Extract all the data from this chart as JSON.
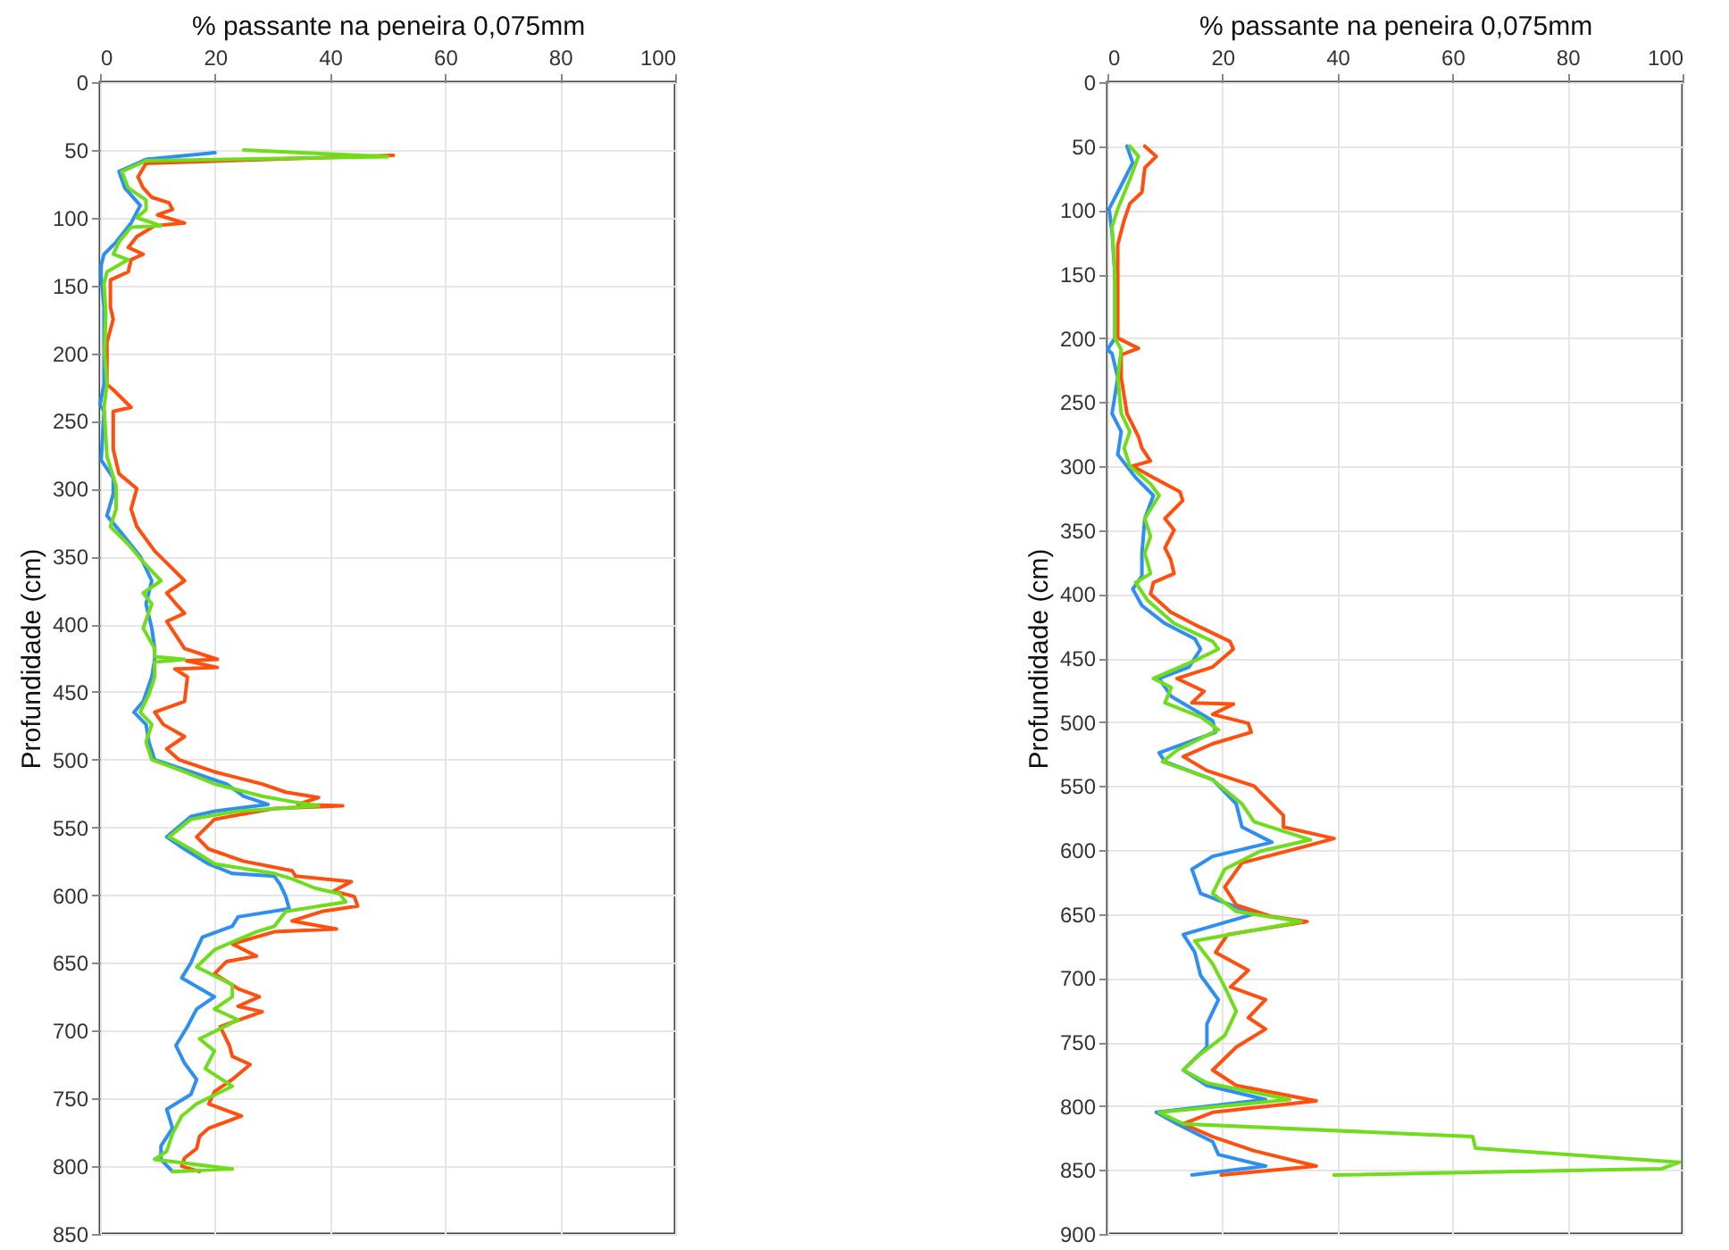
{
  "chart_data": [
    {
      "type": "line",
      "xlabel": "% passante na peneira 0,075mm",
      "ylabel": "Profundidade (cm)",
      "xlim": [
        0,
        100
      ],
      "xticks": [
        0,
        20,
        40,
        60,
        80,
        100
      ],
      "ylim": [
        850,
        0
      ],
      "yticks": [
        0,
        50,
        100,
        150,
        200,
        250,
        300,
        350,
        400,
        450,
        500,
        550,
        600,
        650,
        700,
        750,
        800,
        850
      ],
      "grid": true,
      "series": [
        {
          "color": "#2e8ff0",
          "x": [
            20,
            8,
            3.3,
            4.3,
            7,
            5.4,
            2.8,
            0.7,
            0.2,
            0.2,
            0.7,
            0.7,
            0,
            0.7,
            0.2,
            2.3,
            2.3,
            1.2,
            3.8,
            7,
            9,
            8,
            9,
            9.5,
            9.5,
            9,
            7.5,
            5.9,
            8,
            8.5,
            9.5,
            15.8,
            22,
            25,
            29.2,
            20,
            15.8,
            11.6,
            14.7,
            18.9,
            23,
            30.3,
            31.3,
            32.3,
            32.9,
            24,
            23,
            17.8,
            16.8,
            15.8,
            14.2,
            19.9,
            16.8,
            15.2,
            13.2,
            14.7,
            16.8,
            15.8,
            11.6,
            12.6,
            10.6,
            10.6,
            12.6
          ],
          "values": [
            52,
            57,
            66,
            78,
            91,
            104,
            118,
            127,
            135,
            144,
            166,
            223,
            238,
            243,
            279,
            292,
            304,
            320,
            333,
            350,
            368,
            385,
            403,
            418,
            426,
            439,
            457,
            465,
            474,
            487,
            500,
            509,
            518,
            527,
            533,
            538,
            542,
            557,
            566,
            577,
            584,
            586,
            592,
            601,
            610,
            616,
            623,
            631,
            640,
            650,
            661,
            675,
            684,
            697,
            711,
            724,
            736,
            747,
            758,
            772,
            785,
            795,
            804
          ]
        },
        {
          "color": "#ff4f0f",
          "x": [
            51,
            8,
            6.6,
            7.5,
            9,
            12,
            12.6,
            10,
            14.7,
            9.5,
            6.4,
            4.9,
            7.5,
            5.4,
            4.9,
            1.8,
            1.8,
            2.3,
            1.2,
            1.2,
            2.3,
            5.4,
            2.3,
            2.3,
            3.3,
            6.4,
            5.4,
            6.4,
            9.5,
            12.6,
            14.7,
            11.6,
            13.2,
            14.7,
            11.6,
            14.7,
            20.4,
            15,
            20.4,
            13,
            15.2,
            14.7,
            9.5,
            11,
            14.7,
            11.6,
            13.7,
            19.9,
            28.2,
            32.3,
            38,
            34.4,
            42.2,
            30.3,
            19.9,
            16.8,
            18.9,
            25,
            33.4,
            34,
            43.7,
            40.6,
            44.2,
            44.8,
            38.6,
            33.4,
            41.1,
            30.3,
            23,
            27.2,
            22,
            19.9,
            24,
            27.7,
            24,
            28.2,
            20.9,
            22.5,
            23,
            26.1,
            23,
            19.9,
            18.9,
            24.6,
            18.9,
            17.3,
            16.8,
            14.7,
            14.2,
            17.3
          ],
          "values": [
            54,
            60,
            70,
            78,
            85,
            89,
            94,
            98,
            104,
            106,
            114,
            122,
            127,
            131,
            140,
            146,
            166,
            175,
            192,
            223,
            227,
            240,
            243,
            271,
            289,
            300,
            315,
            328,
            346,
            359,
            368,
            377,
            385,
            392,
            398,
            418,
            426,
            427,
            432,
            433,
            439,
            457,
            465,
            474,
            483,
            492,
            500,
            509,
            518,
            524,
            528,
            533,
            534,
            536,
            544,
            557,
            566,
            575,
            582,
            586,
            590,
            597,
            601,
            608,
            612,
            619,
            625,
            627,
            636,
            645,
            649,
            658,
            669,
            675,
            682,
            686,
            697,
            711,
            719,
            725,
            736,
            745,
            754,
            763,
            772,
            778,
            787,
            794,
            800,
            804
          ]
        },
        {
          "color": "#6fdc1c",
          "x": [
            25,
            50,
            8,
            3.8,
            4.9,
            8,
            8,
            6.4,
            10.6,
            5.4,
            3.3,
            2.3,
            4.9,
            1.2,
            0.7,
            1,
            0.8,
            1.2,
            0.7,
            1.2,
            2.8,
            2.8,
            1.8,
            4.9,
            7.5,
            10.6,
            7.5,
            9,
            7.5,
            9.5,
            9.5,
            14.7,
            9.5,
            9.5,
            8.5,
            7,
            9,
            8,
            9,
            14.7,
            20,
            28.2,
            33.4,
            38,
            24,
            15.8,
            12,
            15.8,
            20,
            30.3,
            33.4,
            37.5,
            41.7,
            42.7,
            32.3,
            30.3,
            27.2,
            20,
            16.8,
            23,
            23,
            19.9,
            24,
            17.3,
            19.9,
            18.3,
            23,
            16.8,
            14.2,
            12.6,
            11.6,
            9.5,
            23,
            12.6
          ],
          "values": [
            50,
            55,
            58,
            66,
            78,
            87,
            94,
            100,
            106,
            107,
            118,
            127,
            131,
            140,
            149,
            170,
            200,
            223,
            240,
            276,
            298,
            315,
            328,
            341,
            354,
            368,
            377,
            385,
            403,
            418,
            424,
            426,
            428,
            439,
            452,
            465,
            474,
            487,
            500,
            509,
            518,
            527,
            531,
            534,
            538,
            544,
            557,
            566,
            577,
            584,
            588,
            595,
            599,
            605,
            612,
            623,
            627,
            640,
            653,
            666,
            675,
            684,
            692,
            706,
            715,
            728,
            741,
            754,
            763,
            776,
            789,
            795,
            802,
            804
          ]
        }
      ]
    },
    {
      "type": "line",
      "xlabel": "% passante na peneira 0,075mm",
      "ylabel": "Profundidade (cm)",
      "xlim": [
        0,
        100
      ],
      "xticks": [
        0,
        20,
        40,
        60,
        80,
        100
      ],
      "ylim": [
        900,
        0
      ],
      "yticks": [
        0,
        50,
        100,
        150,
        200,
        250,
        300,
        350,
        400,
        450,
        500,
        550,
        600,
        650,
        700,
        750,
        800,
        850,
        900
      ],
      "grid": true,
      "series": [
        {
          "color": "#2e8ff0",
          "x": [
            3.4,
            4.4,
            1.8,
            0.3,
            0.8,
            1.3,
            1.3,
            0,
            0.8,
            1.8,
            0.8,
            2.4,
            1.8,
            4.9,
            8,
            6.5,
            6,
            6,
            4.4,
            6,
            10,
            15.2,
            16.2,
            14.2,
            9,
            11.1,
            18.3,
            18.8,
            9,
            10,
            18.3,
            22.4,
            23.4,
            28.6,
            18.3,
            14.7,
            16.2,
            25.5,
            13.2,
            15.2,
            16.2,
            19.3,
            17.3,
            17.3,
            13.2,
            17.3,
            27.5,
            8.5,
            12.1,
            18.3,
            19.3,
            27.5,
            14.7
          ],
          "values": [
            50,
            63,
            86,
            99,
            117,
            150,
            200,
            209,
            212,
            231,
            259,
            273,
            291,
            309,
            323,
            341,
            368,
            386,
            396,
            409,
            423,
            435,
            443,
            457,
            466,
            480,
            499,
            508,
            524,
            531,
            545,
            564,
            582,
            594,
            605,
            615,
            634,
            650,
            666,
            680,
            698,
            717,
            736,
            754,
            772,
            784,
            795,
            805,
            814,
            828,
            838,
            847,
            854
          ]
        },
        {
          "color": "#ff4f0f",
          "x": [
            6.5,
            8.5,
            6.5,
            6,
            3.9,
            2.9,
            1.8,
            1.8,
            1.8,
            5.4,
            2.4,
            2.4,
            3.4,
            5.4,
            6,
            7.5,
            4.4,
            8,
            12.6,
            13.1,
            10,
            11.6,
            10,
            11,
            11.6,
            8,
            7.5,
            11,
            15.7,
            21.3,
            21.9,
            18.3,
            12.1,
            16.8,
            14.7,
            21.9,
            18.3,
            24.5,
            25,
            18.3,
            13.2,
            17.3,
            25.5,
            28.6,
            30.6,
            30.6,
            39.4,
            33.7,
            23.4,
            20.4,
            22.4,
            28.6,
            34.7,
            20.9,
            18.8,
            24.5,
            21.4,
            27.5,
            24.5,
            27.5,
            22.4,
            18.3,
            22.4,
            36.3,
            18.3,
            13.2,
            18.3,
            25.5,
            36.3,
            19.8
          ],
          "values": [
            50,
            58,
            67,
            86,
            95,
            108,
            127,
            150,
            200,
            208,
            213,
            231,
            259,
            277,
            286,
            296,
            300,
            309,
            320,
            327,
            341,
            350,
            364,
            373,
            384,
            391,
            400,
            414,
            425,
            437,
            443,
            457,
            466,
            476,
            485,
            486,
            494,
            501,
            508,
            517,
            527,
            538,
            550,
            564,
            573,
            582,
            591,
            598,
            610,
            629,
            643,
            652,
            656,
            666,
            680,
            694,
            707,
            717,
            731,
            740,
            754,
            772,
            784,
            796,
            805,
            814,
            824,
            835,
            847,
            854
          ]
        },
        {
          "color": "#6fdc1c",
          "x": [
            3.9,
            5.4,
            3.9,
            1.8,
            0.8,
            1.3,
            1.3,
            2.4,
            1.8,
            2.4,
            3.9,
            2.9,
            3.9,
            7.5,
            9,
            6.5,
            7.5,
            6.5,
            7.5,
            4.9,
            7,
            11.6,
            18.3,
            19.3,
            15.2,
            8,
            11.1,
            10,
            16.2,
            19.3,
            12.1,
            9.6,
            18.3,
            23.4,
            25.5,
            35.3,
            26.5,
            20.4,
            18.3,
            22.4,
            33.7,
            15.2,
            18.3,
            20.4,
            22.4,
            20.4,
            15.2,
            13.2,
            17.3,
            31.7,
            9,
            13.2,
            63.5,
            64,
            99.5,
            96.4,
            39.4
          ],
          "values": [
            50,
            58,
            76,
            99,
            113,
            150,
            200,
            209,
            231,
            259,
            273,
            286,
            300,
            314,
            323,
            341,
            355,
            368,
            384,
            391,
            405,
            423,
            437,
            443,
            452,
            466,
            473,
            485,
            496,
            506,
            522,
            531,
            545,
            564,
            578,
            592,
            601,
            615,
            634,
            648,
            656,
            671,
            689,
            707,
            726,
            745,
            763,
            772,
            782,
            795,
            805,
            814,
            824,
            833,
            844,
            849,
            854
          ]
        }
      ]
    }
  ]
}
